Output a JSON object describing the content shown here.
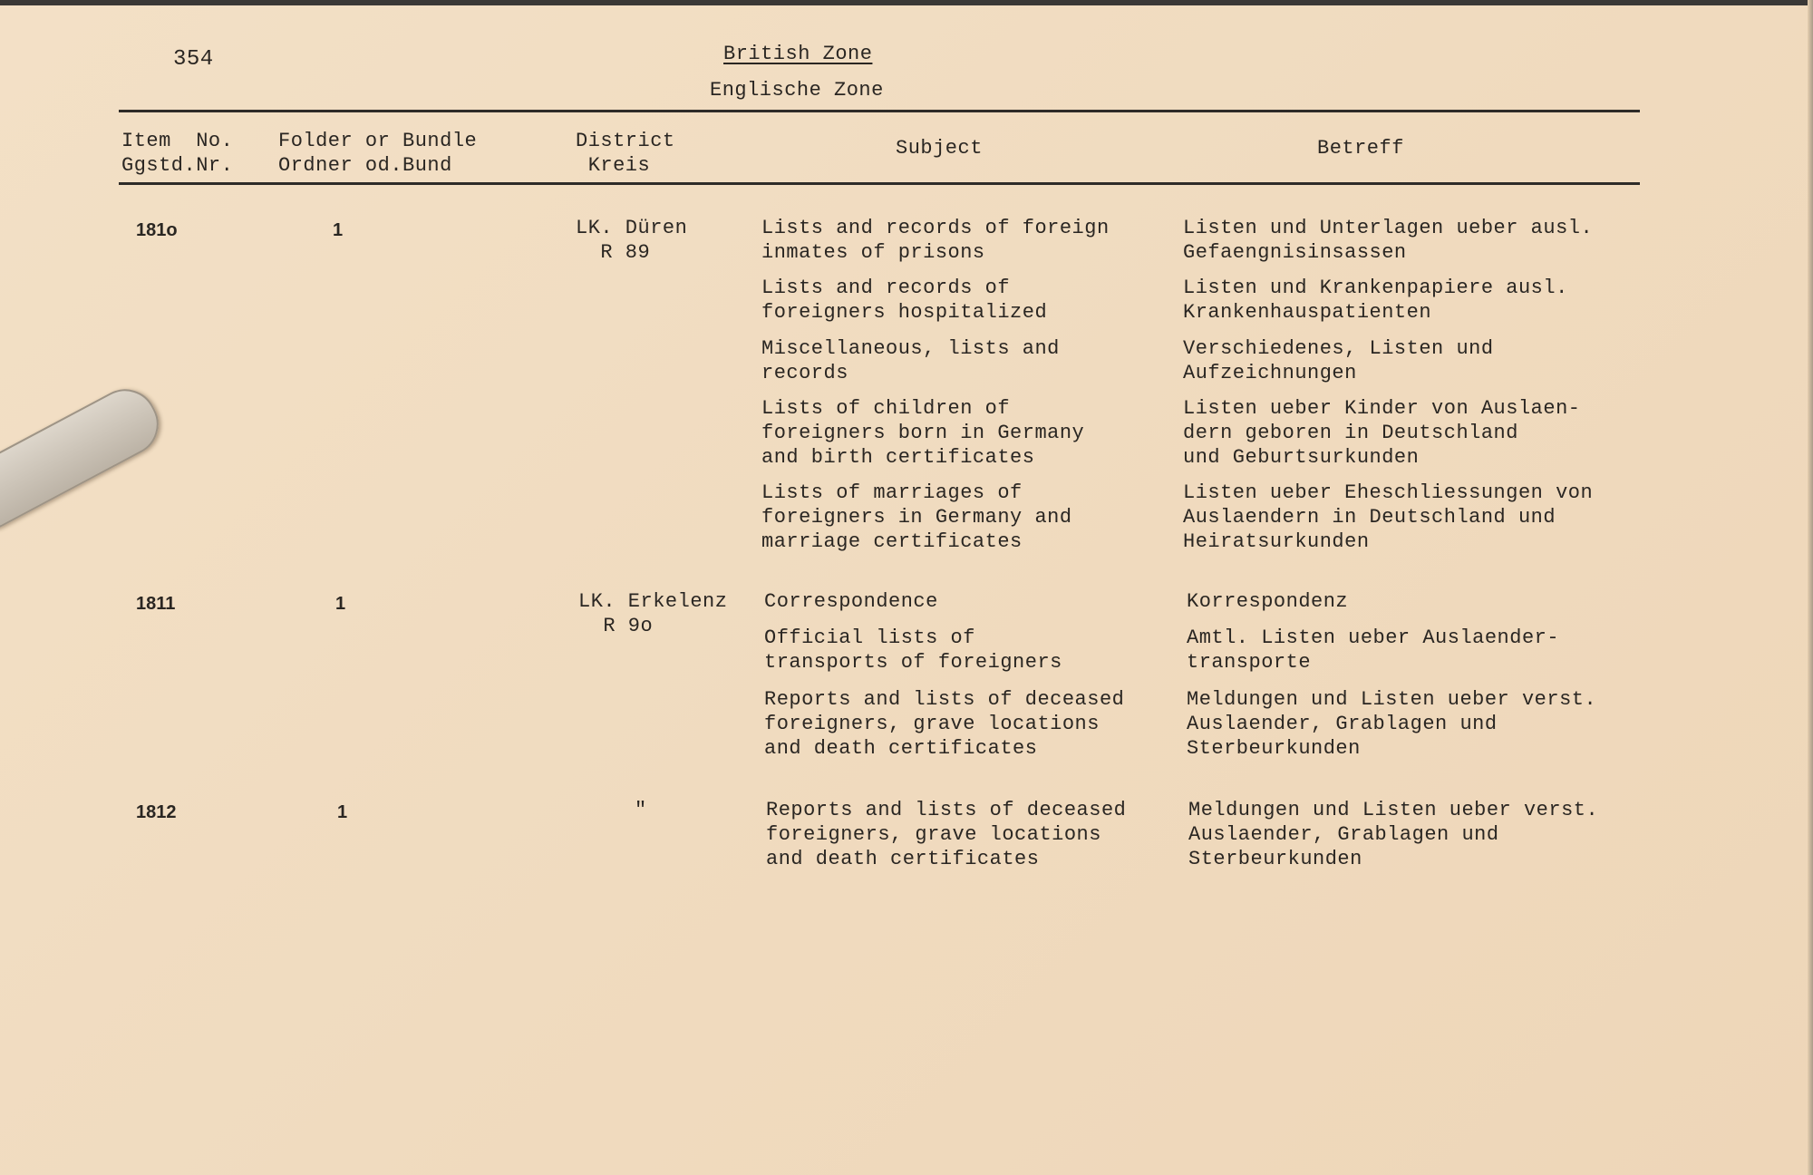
{
  "page_number": "354",
  "title": "British Zone",
  "subtitle": "Englische Zone",
  "headers": {
    "item_no": [
      "Item  No.",
      "Ggstd.Nr."
    ],
    "folder": [
      "Folder or Bundle",
      "Ordner od.Bund"
    ],
    "district": [
      "District",
      " Kreis"
    ],
    "subject": "Subject",
    "betreff": "Betreff"
  },
  "rows": [
    {
      "item": "181o",
      "folder": "1",
      "district": [
        "LK. Düren",
        "  R 89"
      ],
      "entries": [
        {
          "subject": "Lists and records of foreign\ninmates of prisons",
          "betreff": "Listen und Unterlagen ueber ausl.\nGefaengnisinsassen"
        },
        {
          "subject": "Lists and records of\nforeigners hospitalized",
          "betreff": "Listen und Krankenpapiere ausl.\nKrankenhauspatienten"
        },
        {
          "subject": "Miscellaneous, lists and\nrecords",
          "betreff": "Verschiedenes, Listen und\nAufzeichnungen"
        },
        {
          "subject": "Lists of children of\nforeigners born in Germany\nand birth certificates",
          "betreff": "Listen ueber Kinder von Auslaen-\ndern geboren in Deutschland\nund Geburtsurkunden"
        },
        {
          "subject": "Lists of marriages of\nforeigners in Germany and\nmarriage certificates",
          "betreff": "Listen ueber Eheschliessungen von\nAuslaendern in Deutschland und\nHeiratsurkunden"
        }
      ]
    },
    {
      "item": "1811",
      "folder": "1",
      "district": [
        "LK. Erkelenz",
        "  R 9o"
      ],
      "entries": [
        {
          "subject": "Correspondence",
          "betreff": "Korrespondenz"
        },
        {
          "subject": "Official lists of\ntransports of foreigners",
          "betreff": "Amtl. Listen ueber Auslaender-\ntransporte"
        },
        {
          "subject": "Reports and lists of deceased\nforeigners, grave locations\nand death certificates",
          "betreff": "Meldungen und Listen ueber verst.\nAuslaender, Grablagen und\nSterbeurkunden"
        }
      ]
    },
    {
      "item": "1812",
      "folder": "1",
      "district": [
        "\""
      ],
      "entries": [
        {
          "subject": "Reports and lists of deceased\nforeigners, grave locations\nand death certificates",
          "betreff": "Meldungen und Listen ueber verst.\nAuslaender, Grablagen und\nSterbeurkunden"
        }
      ]
    }
  ]
}
